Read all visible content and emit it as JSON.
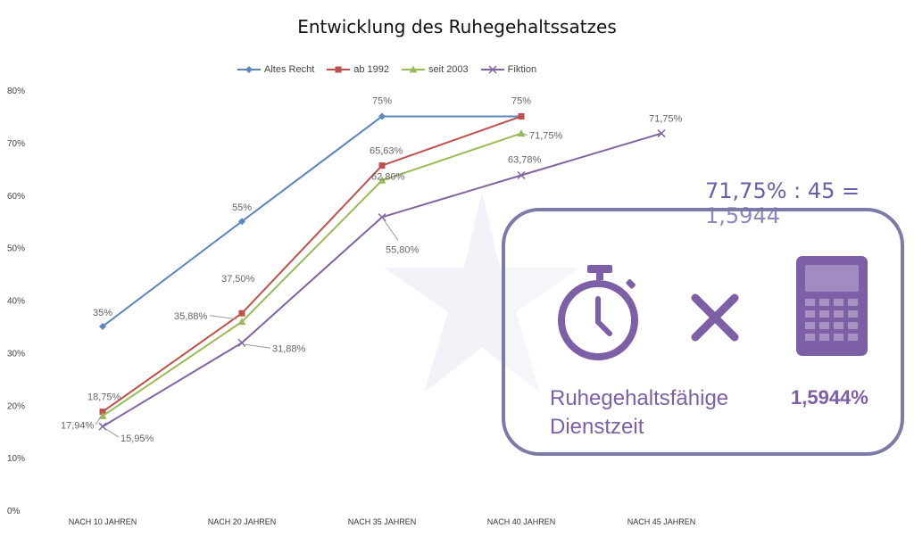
{
  "chart_data": {
    "type": "line",
    "title": "Entwicklung des Ruhegehaltssatzes",
    "categories": [
      "NACH 10 JAHREN",
      "NACH 20 JAHREN",
      "NACH 35 JAHREN",
      "NACH 40 JAHREN",
      "NACH 45 JAHREN"
    ],
    "y_ticks": [
      "0%",
      "10%",
      "20%",
      "30%",
      "40%",
      "50%",
      "60%",
      "70%",
      "80%"
    ],
    "ylim": [
      0,
      80
    ],
    "grid": false,
    "legend_position": "top",
    "series": [
      {
        "name": "Altes Recht",
        "color": "#5b86c2",
        "marker": "diamond",
        "values": [
          35,
          55,
          75,
          75,
          null
        ],
        "labels": [
          "35%",
          "55%",
          "75%",
          "75%",
          null
        ]
      },
      {
        "name": "ab 1992",
        "color": "#c0504d",
        "marker": "square",
        "values": [
          18.75,
          37.5,
          65.63,
          75,
          null
        ],
        "labels": [
          "18,75%",
          "37,50%",
          "65,63%",
          null,
          null
        ]
      },
      {
        "name": "seit 2003",
        "color": "#9bbb59",
        "marker": "triangle",
        "values": [
          17.94,
          35.88,
          62.8,
          71.75,
          null
        ],
        "labels": [
          "17,94%",
          "35,88%",
          "62,80%",
          "71,75%",
          null
        ]
      },
      {
        "name": "Fiktion",
        "color": "#8064a2",
        "marker": "x",
        "values": [
          15.95,
          31.88,
          55.8,
          63.78,
          71.75
        ],
        "labels": [
          "15,95%",
          "31,88%",
          "55,80%",
          "63,78%",
          "71,75%"
        ]
      }
    ]
  },
  "formula": "71,75% : 45 = 1,5944",
  "info_box": {
    "label": "Ruhegehaltsfähige Dienstzeit",
    "value": "1,5944%",
    "icons": [
      "stopwatch-icon",
      "multiply-icon",
      "calculator-icon"
    ],
    "accent_color": "#7d5fa8",
    "border_color": "#7c7ba8"
  }
}
